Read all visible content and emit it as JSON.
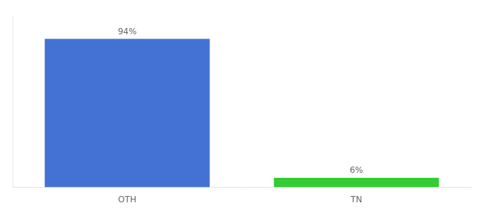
{
  "chart_data": {
    "type": "bar",
    "categories": [
      "OTH",
      "TN"
    ],
    "values": [
      94,
      6
    ],
    "value_labels": [
      "94%",
      "6%"
    ],
    "colors": [
      "#4472D4",
      "#33CC33"
    ],
    "ylim": [
      0,
      108
    ],
    "grid": false,
    "data_labels": true,
    "tick_labels": "x"
  }
}
